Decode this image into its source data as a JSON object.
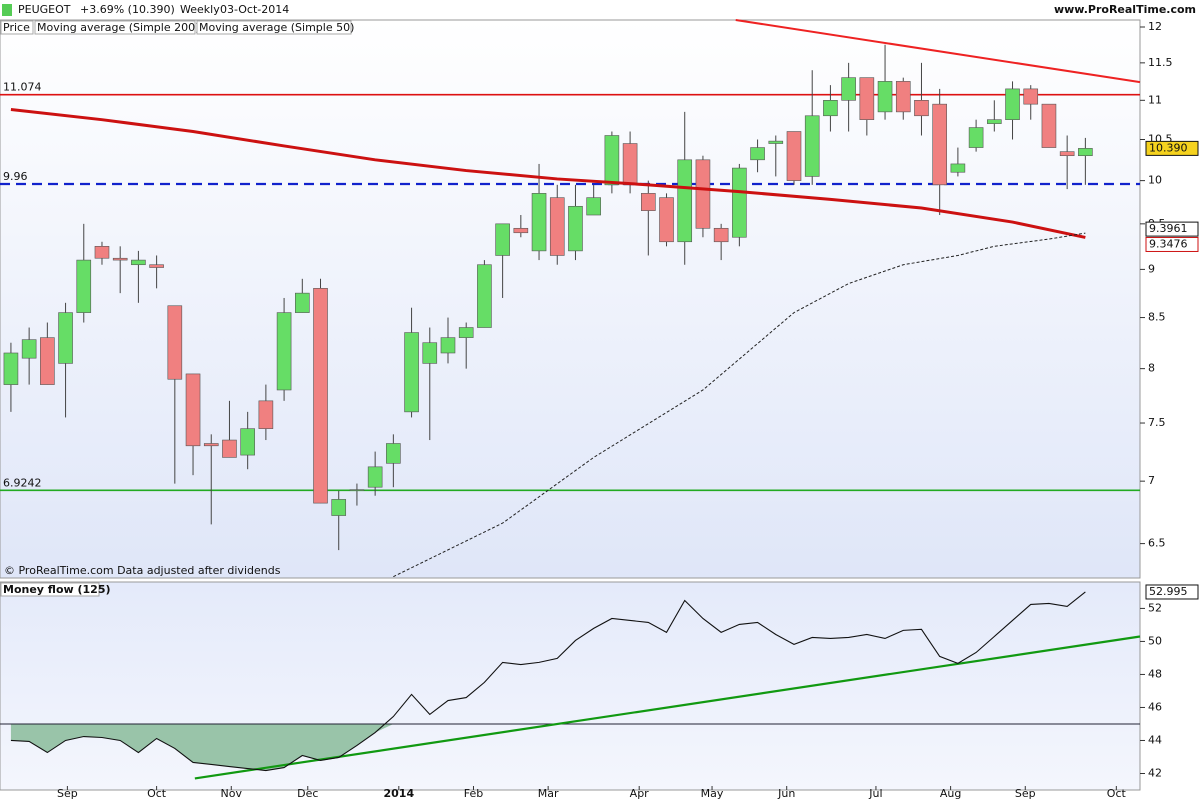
{
  "header": {
    "symbol": "PEUGEOT",
    "change": "+3.69% (10.390)",
    "period": "Weekly",
    "date": "03-Oct-2014",
    "site": "www.ProRealTime.com"
  },
  "chart_data": [
    {
      "type": "candlestick",
      "legend": [
        "Price",
        "Moving average (Simple 200)",
        "Moving average (Simple 50)"
      ],
      "footnote": "© ProRealTime.com  Data adjusted after dividends",
      "log_scale": true,
      "xlim": [
        -0.6,
        62
      ],
      "ylim": [
        6.24,
        12.1
      ],
      "yticks": [
        12,
        11.5,
        11,
        10.5,
        10,
        9.5,
        9,
        8.5,
        8,
        7.5,
        7,
        6.5
      ],
      "up_color": "#66dd66",
      "down_color": "#f08080",
      "open": [
        7.85,
        8.1,
        8.3,
        8.05,
        8.55,
        9.25,
        9.12,
        9.05,
        9.05,
        8.62,
        7.95,
        7.32,
        7.35,
        7.22,
        7.7,
        7.8,
        8.55,
        8.8,
        6.72,
        6.93,
        6.95,
        7.15,
        7.6,
        8.05,
        8.15,
        8.3,
        8.4,
        9.15,
        9.45,
        9.2,
        9.8,
        9.2,
        9.6,
        9.95,
        10.45,
        9.85,
        9.8,
        9.3,
        10.25,
        9.45,
        9.35,
        10.25,
        10.45,
        10.6,
        10.05,
        10.8,
        11.0,
        11.3,
        10.85,
        11.25,
        11.0,
        10.95,
        10.1,
        10.4,
        10.7,
        10.75,
        11.15,
        10.95,
        10.35,
        10.3
      ],
      "high": [
        8.25,
        8.4,
        8.45,
        8.65,
        9.5,
        9.3,
        9.25,
        9.2,
        9.15,
        8.62,
        7.95,
        7.4,
        7.7,
        7.6,
        7.85,
        8.7,
        8.9,
        8.9,
        6.92,
        6.98,
        7.25,
        7.4,
        8.6,
        8.4,
        8.5,
        8.45,
        9.1,
        9.5,
        9.6,
        10.2,
        9.95,
        9.95,
        9.95,
        10.6,
        10.6,
        10.0,
        9.85,
        10.85,
        10.3,
        9.5,
        10.2,
        10.5,
        10.55,
        10.6,
        11.4,
        11.2,
        11.5,
        11.3,
        11.75,
        11.3,
        11.5,
        11.15,
        10.4,
        10.75,
        11.0,
        11.25,
        11.2,
        10.95,
        10.55,
        10.52
      ],
      "low": [
        7.6,
        7.85,
        7.85,
        7.55,
        8.45,
        9.05,
        8.75,
        8.65,
        8.8,
        6.98,
        7.05,
        6.65,
        7.2,
        7.1,
        7.35,
        7.7,
        8.55,
        6.82,
        6.45,
        6.8,
        6.88,
        6.95,
        7.55,
        7.35,
        8.05,
        8.0,
        8.4,
        8.7,
        9.35,
        9.1,
        9.05,
        9.1,
        9.6,
        9.85,
        9.85,
        9.15,
        9.25,
        9.05,
        9.35,
        9.1,
        9.25,
        10.1,
        10.05,
        9.95,
        9.95,
        10.6,
        10.6,
        10.55,
        10.75,
        10.75,
        10.55,
        9.6,
        10.05,
        10.35,
        10.6,
        10.5,
        10.75,
        10.4,
        9.9,
        9.95
      ],
      "close": [
        8.15,
        8.28,
        7.85,
        8.55,
        9.1,
        9.12,
        9.1,
        9.1,
        9.02,
        7.9,
        7.3,
        7.3,
        7.2,
        7.45,
        7.45,
        8.55,
        8.75,
        6.82,
        6.85,
        6.93,
        7.12,
        7.32,
        8.35,
        8.25,
        8.3,
        8.4,
        9.05,
        9.5,
        9.4,
        9.85,
        9.15,
        9.7,
        9.8,
        10.55,
        9.95,
        9.65,
        9.3,
        10.25,
        9.45,
        9.3,
        10.15,
        10.4,
        10.48,
        10.0,
        10.8,
        11.0,
        11.3,
        10.75,
        11.25,
        10.85,
        10.8,
        9.95,
        10.2,
        10.65,
        10.75,
        11.15,
        10.95,
        10.4,
        10.3,
        10.39
      ],
      "series": [
        {
          "name": "Moving average (Simple 200)",
          "color": "#cc1111",
          "x": [
            0,
            5,
            10,
            15,
            20,
            25,
            30,
            35,
            40,
            45,
            50,
            55,
            59
          ],
          "values": [
            10.88,
            10.75,
            10.6,
            10.42,
            10.25,
            10.12,
            10.02,
            9.95,
            9.87,
            9.78,
            9.68,
            9.52,
            9.3476
          ],
          "value_label": "9.3476"
        },
        {
          "name": "Moving average (Simple 50)",
          "color": "#222222",
          "x": [
            21,
            27,
            32,
            38,
            43,
            46,
            49,
            52,
            54,
            57,
            59
          ],
          "values": [
            6.25,
            6.66,
            7.2,
            7.8,
            8.55,
            8.85,
            9.05,
            9.15,
            9.25,
            9.33,
            9.3961
          ],
          "value_label": "9.3961"
        }
      ],
      "last_price": {
        "value": 10.39,
        "label": "10.390"
      },
      "levels": [
        {
          "value": 11.074,
          "color": "#dd1111",
          "dashed": false
        },
        {
          "value": 9.96,
          "color": "#1122cc",
          "dashed": true
        },
        {
          "value": 6.9242,
          "color": "#22aa22",
          "dashed": false
        }
      ],
      "trendline": {
        "color": "#ee2222",
        "x": [
          39.8,
          62
        ],
        "values": [
          12.1,
          11.24
        ]
      }
    },
    {
      "type": "line",
      "title": "Money flow (125)",
      "xlim": [
        -0.6,
        62
      ],
      "ylim": [
        41,
        53.6
      ],
      "yticks": [
        42,
        44,
        46,
        48,
        50,
        52
      ],
      "xticks": [
        {
          "value": 3.1,
          "label": "Sep"
        },
        {
          "value": 8,
          "label": "Oct"
        },
        {
          "value": 12.1,
          "label": "Nov"
        },
        {
          "value": 16.3,
          "label": "Dec"
        },
        {
          "value": 21.3,
          "label": "2014"
        },
        {
          "value": 25.4,
          "label": "Feb"
        },
        {
          "value": 29.5,
          "label": "Mar"
        },
        {
          "value": 34.5,
          "label": "Apr"
        },
        {
          "value": 38.5,
          "label": "May"
        },
        {
          "value": 42.6,
          "label": "Jun"
        },
        {
          "value": 47.5,
          "label": "Jul"
        },
        {
          "value": 51.6,
          "label": "Aug"
        },
        {
          "value": 55.7,
          "label": "Sep"
        },
        {
          "value": 60.7,
          "label": "Oct"
        }
      ],
      "values": [
        44.0,
        43.94,
        43.27,
        44.0,
        44.24,
        44.18,
        44.0,
        43.27,
        44.12,
        43.52,
        42.67,
        42.55,
        42.42,
        42.3,
        42.18,
        42.36,
        43.09,
        42.79,
        42.97,
        43.7,
        44.48,
        45.45,
        46.79,
        45.58,
        46.42,
        46.6,
        47.52,
        48.73,
        48.6,
        48.73,
        48.97,
        50.06,
        50.79,
        51.39,
        51.27,
        51.15,
        50.55,
        52.48,
        51.39,
        50.55,
        51.03,
        51.15,
        50.42,
        49.82,
        50.24,
        50.18,
        50.24,
        50.42,
        50.18,
        50.67,
        50.73,
        49.09,
        48.67,
        49.33,
        50.3,
        51.27,
        52.24,
        52.3,
        52.12,
        52.995
      ],
      "color": "#111111",
      "threshold": 45,
      "fill_color": "#8fbfa0",
      "trendline": {
        "color": "#119911",
        "x": [
          10.1,
          62
        ],
        "values": [
          41.7,
          50.3
        ]
      }
    }
  ]
}
